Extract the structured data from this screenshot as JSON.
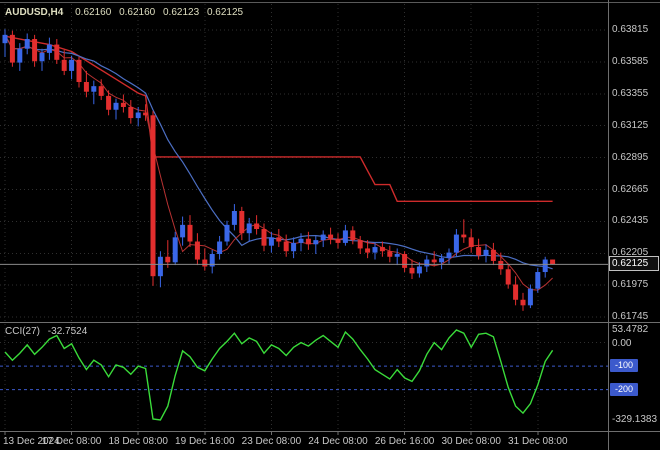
{
  "title": {
    "symbol_period": "AUDUSD,H4",
    "open": "0.62160",
    "high": "0.62160",
    "low": "0.62123",
    "close": "0.62125"
  },
  "chart_data": {
    "type": "candlestick",
    "symbol": "AUDUSD",
    "timeframe": "H4",
    "price_axis": {
      "labels": [
        "0.63815",
        "0.63585",
        "0.63355",
        "0.63125",
        "0.62895",
        "0.62665",
        "0.62435",
        "0.62205",
        "0.61975",
        "0.61745"
      ],
      "bid": 0.62125,
      "bid_label": "0.62125"
    },
    "candles": [
      [
        0.6372,
        0.6382,
        0.6362,
        0.6378
      ],
      [
        0.6378,
        0.6381,
        0.6355,
        0.6358
      ],
      [
        0.6358,
        0.6372,
        0.6352,
        0.6368
      ],
      [
        0.6368,
        0.6379,
        0.6364,
        0.6375
      ],
      [
        0.6375,
        0.6378,
        0.6355,
        0.6359
      ],
      [
        0.6359,
        0.6368,
        0.6352,
        0.6365
      ],
      [
        0.6365,
        0.6376,
        0.636,
        0.6371
      ],
      [
        0.6371,
        0.6375,
        0.6357,
        0.636
      ],
      [
        0.636,
        0.6367,
        0.6349,
        0.6352
      ],
      [
        0.6352,
        0.6363,
        0.6346,
        0.636
      ],
      [
        0.636,
        0.6362,
        0.634,
        0.6344
      ],
      [
        0.6344,
        0.6352,
        0.6333,
        0.6337
      ],
      [
        0.6337,
        0.6345,
        0.6328,
        0.6341
      ],
      [
        0.6341,
        0.6346,
        0.6331,
        0.6334
      ],
      [
        0.6334,
        0.6338,
        0.632,
        0.6324
      ],
      [
        0.6324,
        0.6332,
        0.6317,
        0.6329
      ],
      [
        0.6329,
        0.6335,
        0.6322,
        0.6326
      ],
      [
        0.6326,
        0.6331,
        0.6314,
        0.6318
      ],
      [
        0.6318,
        0.6326,
        0.6312,
        0.6322
      ],
      [
        0.6322,
        0.6328,
        0.6316,
        0.632
      ],
      [
        0.632,
        0.6323,
        0.6197,
        0.6204
      ],
      [
        0.6204,
        0.6222,
        0.6196,
        0.6218
      ],
      [
        0.6218,
        0.623,
        0.621,
        0.6214
      ],
      [
        0.6214,
        0.6236,
        0.6212,
        0.6232
      ],
      [
        0.6232,
        0.6247,
        0.6226,
        0.6241
      ],
      [
        0.6241,
        0.6248,
        0.6225,
        0.6229
      ],
      [
        0.6229,
        0.6235,
        0.6212,
        0.6216
      ],
      [
        0.6216,
        0.6224,
        0.6208,
        0.6211
      ],
      [
        0.6211,
        0.6223,
        0.6206,
        0.622
      ],
      [
        0.622,
        0.6233,
        0.6216,
        0.6229
      ],
      [
        0.6229,
        0.6244,
        0.6226,
        0.6241
      ],
      [
        0.6241,
        0.6256,
        0.6237,
        0.6251
      ],
      [
        0.6251,
        0.6254,
        0.623,
        0.6235
      ],
      [
        0.6235,
        0.6246,
        0.6229,
        0.6242
      ],
      [
        0.6242,
        0.6248,
        0.6234,
        0.6238
      ],
      [
        0.6238,
        0.6242,
        0.6222,
        0.6226
      ],
      [
        0.6226,
        0.6236,
        0.6221,
        0.6232
      ],
      [
        0.6232,
        0.6238,
        0.6225,
        0.6229
      ],
      [
        0.6229,
        0.6234,
        0.6218,
        0.6222
      ],
      [
        0.6222,
        0.6232,
        0.6217,
        0.6228
      ],
      [
        0.6228,
        0.6235,
        0.6222,
        0.6231
      ],
      [
        0.6231,
        0.6236,
        0.6223,
        0.6227
      ],
      [
        0.6227,
        0.6233,
        0.622,
        0.623
      ],
      [
        0.623,
        0.6237,
        0.6225,
        0.6234
      ],
      [
        0.6234,
        0.6239,
        0.6227,
        0.6231
      ],
      [
        0.6231,
        0.6235,
        0.6224,
        0.6228
      ],
      [
        0.6228,
        0.6241,
        0.6226,
        0.6237
      ],
      [
        0.6237,
        0.624,
        0.6227,
        0.623
      ],
      [
        0.623,
        0.6233,
        0.622,
        0.6224
      ],
      [
        0.6224,
        0.623,
        0.6217,
        0.6221
      ],
      [
        0.6221,
        0.6228,
        0.6216,
        0.6225
      ],
      [
        0.6225,
        0.6229,
        0.6218,
        0.6222
      ],
      [
        0.6222,
        0.6226,
        0.6214,
        0.6218
      ],
      [
        0.6218,
        0.6224,
        0.6212,
        0.622
      ],
      [
        0.622,
        0.6222,
        0.6207,
        0.621
      ],
      [
        0.621,
        0.6216,
        0.6202,
        0.6206
      ],
      [
        0.6206,
        0.6214,
        0.6203,
        0.6211
      ],
      [
        0.6211,
        0.6219,
        0.6207,
        0.6216
      ],
      [
        0.6216,
        0.6222,
        0.6211,
        0.6214
      ],
      [
        0.6214,
        0.622,
        0.6209,
        0.6217
      ],
      [
        0.6217,
        0.6224,
        0.6213,
        0.6221
      ],
      [
        0.6221,
        0.6238,
        0.6218,
        0.6234
      ],
      [
        0.6234,
        0.6245,
        0.6228,
        0.6232
      ],
      [
        0.6232,
        0.6238,
        0.6221,
        0.6225
      ],
      [
        0.6225,
        0.6231,
        0.6216,
        0.6219
      ],
      [
        0.6219,
        0.6227,
        0.6214,
        0.6223
      ],
      [
        0.6223,
        0.6228,
        0.6212,
        0.6215
      ],
      [
        0.6215,
        0.6221,
        0.6205,
        0.6209
      ],
      [
        0.6209,
        0.6213,
        0.6195,
        0.6198
      ],
      [
        0.6198,
        0.6204,
        0.6183,
        0.6187
      ],
      [
        0.6187,
        0.6192,
        0.6179,
        0.6183
      ],
      [
        0.6183,
        0.6198,
        0.6181,
        0.6195
      ],
      [
        0.6195,
        0.621,
        0.6192,
        0.6207
      ],
      [
        0.6207,
        0.6218,
        0.6203,
        0.6216
      ],
      [
        0.6216,
        0.6216,
        0.62123,
        0.62125
      ]
    ],
    "overlays": {
      "ma_fast_period": 5,
      "ma_slow_period": 13,
      "step_line_points": [
        [
          0,
          0.6377
        ],
        [
          3,
          0.6374
        ],
        [
          6,
          0.6371
        ],
        [
          9,
          0.6366
        ],
        [
          12,
          0.6356
        ],
        [
          15,
          0.6346
        ],
        [
          18,
          0.6336
        ],
        [
          19,
          0.6334
        ],
        [
          20,
          0.629
        ],
        [
          48,
          0.629
        ],
        [
          49,
          0.628
        ],
        [
          50,
          0.627
        ],
        [
          52,
          0.627
        ],
        [
          53,
          0.6258
        ],
        [
          74,
          0.6258
        ]
      ]
    },
    "time_axis": {
      "ticks": [
        {
          "i": 0,
          "label": "13 Dec 2024"
        },
        {
          "i": 9,
          "label": "17 Dec 08:00"
        },
        {
          "i": 18,
          "label": "18 Dec 08:00"
        },
        {
          "i": 27,
          "label": "19 Dec 16:00"
        },
        {
          "i": 36,
          "label": "23 Dec 08:00"
        },
        {
          "i": 45,
          "label": "24 Dec 08:00"
        },
        {
          "i": 54,
          "label": "26 Dec 16:00"
        },
        {
          "i": 63,
          "label": "30 Dec 08:00"
        },
        {
          "i": 72,
          "label": "31 Dec 08:00"
        }
      ]
    },
    "cci": {
      "name": "CCI(27)",
      "value_text": "-32.7524",
      "values": [
        -40,
        -75,
        -45,
        -10,
        -50,
        -20,
        15,
        30,
        -25,
        -5,
        -65,
        -115,
        -75,
        -95,
        -145,
        -95,
        -105,
        -135,
        -100,
        -110,
        -325,
        -329.1383,
        -270,
        -140,
        -35,
        -60,
        -105,
        -120,
        -70,
        -25,
        5,
        40,
        -5,
        20,
        5,
        -45,
        -10,
        -25,
        -55,
        -20,
        0,
        -15,
        10,
        30,
        5,
        -20,
        45,
        15,
        -30,
        -70,
        -115,
        -135,
        -155,
        -115,
        -150,
        -165,
        -120,
        -50,
        0,
        -30,
        20,
        53.4782,
        40,
        -20,
        35,
        40,
        25,
        -80,
        -190,
        -270,
        -300,
        -260,
        -180,
        -80,
        -32.7524
      ],
      "axis": {
        "max_value": 53.4782,
        "max_label": "53.4782",
        "zero_label": "0.00",
        "levels": [
          {
            "value": -100,
            "label": "-100"
          },
          {
            "value": -200,
            "label": "-200"
          }
        ],
        "min_value": -329.1383,
        "min_label": "-329.1383"
      }
    },
    "colors": {
      "background": "#000000",
      "grid": "#2F2F2F",
      "bull": "#3A67E8",
      "bear": "#E22E2E",
      "ma_blue": "#4C6FC4",
      "ma_red": "#B83232",
      "step_red": "#CE2B2B",
      "bid_line": "#8A8A8A",
      "cci_green": "#3ADB3A",
      "level_blue": "#3C5ACC",
      "axis_text": "#C8C8C8",
      "title_text": "#DEDEC0",
      "separator": "#6E6E6E",
      "badge_bg": "#101010",
      "badge_border": "#C0C0C0",
      "badge_text": "#FFFFFF"
    }
  }
}
